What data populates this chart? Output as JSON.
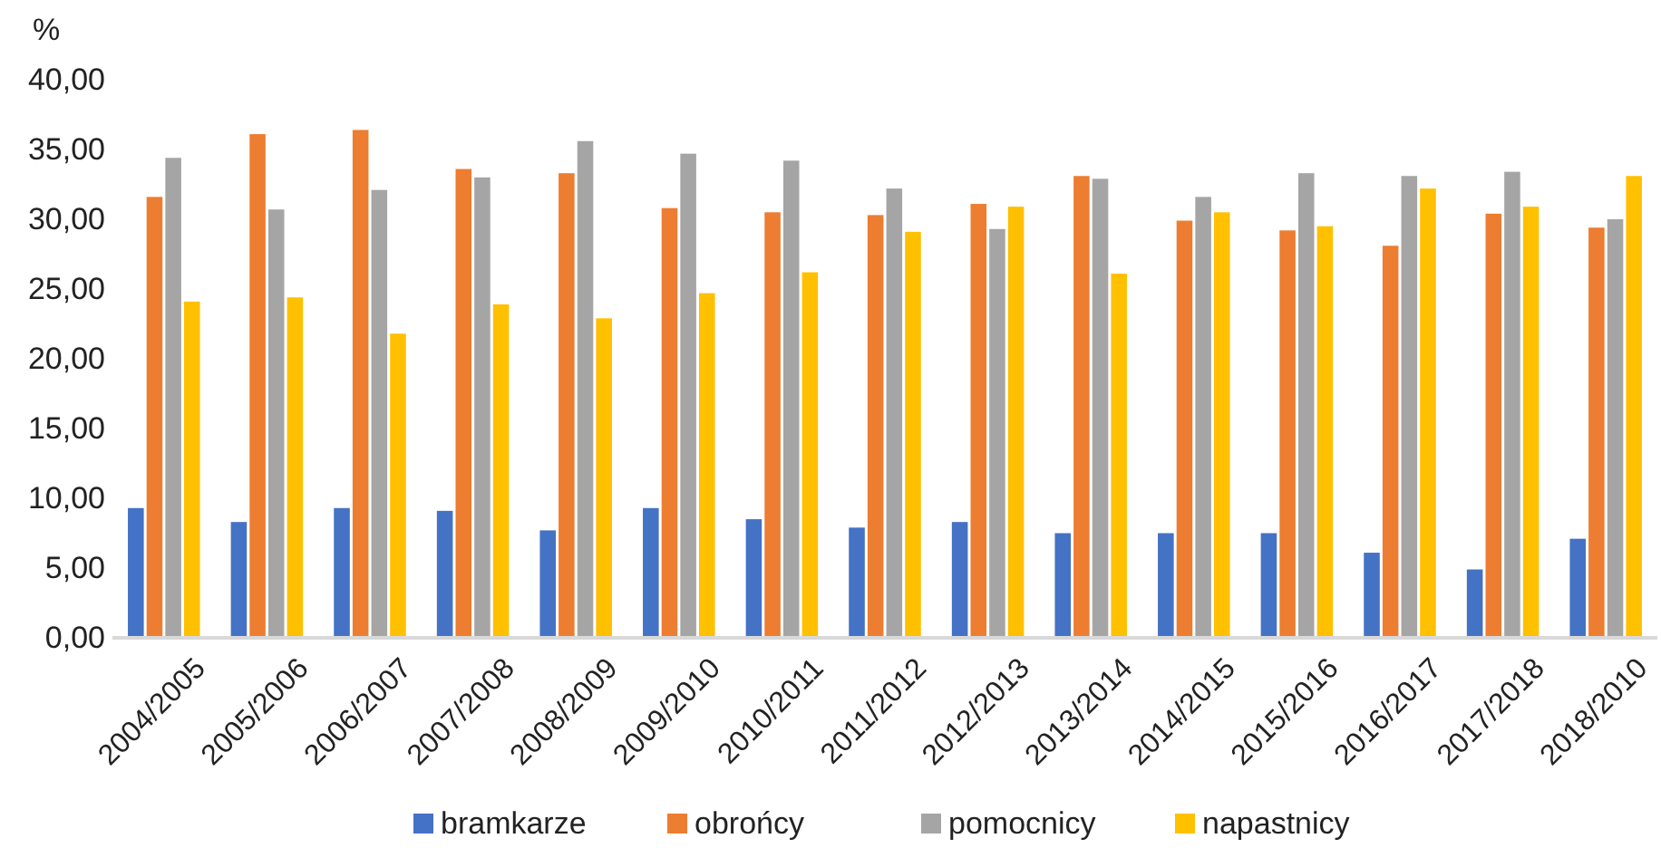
{
  "chart_data": {
    "type": "bar",
    "ylabel": "%",
    "categories": [
      "2004/2005",
      "2005/2006",
      "2006/2007",
      "2007/2008",
      "2008/2009",
      "2009/2010",
      "2010/2011",
      "2011/2012",
      "2012/2013",
      "2013/2014",
      "2014/2015",
      "2015/2016",
      "2016/2017",
      "2017/2018",
      "2018/2010"
    ],
    "series": [
      {
        "name": "bramkarze",
        "color": "#4472c4",
        "values": [
          9.3,
          8.3,
          9.3,
          9.1,
          7.7,
          9.3,
          8.5,
          7.9,
          8.3,
          7.5,
          7.5,
          7.5,
          6.1,
          4.9,
          7.1
        ]
      },
      {
        "name": "obrońcy",
        "color": "#ed7d31",
        "values": [
          31.6,
          36.1,
          36.4,
          33.6,
          33.3,
          30.8,
          30.5,
          30.3,
          31.1,
          33.1,
          29.9,
          29.2,
          28.1,
          30.4,
          29.4
        ]
      },
      {
        "name": "pomocnicy",
        "color": "#a5a5a5",
        "values": [
          34.4,
          30.7,
          32.1,
          33.0,
          35.6,
          34.7,
          34.2,
          32.2,
          29.3,
          32.9,
          31.6,
          33.3,
          33.1,
          33.4,
          30.0
        ]
      },
      {
        "name": "napastnicy",
        "color": "#ffc000",
        "values": [
          24.1,
          24.4,
          21.8,
          23.9,
          22.9,
          24.7,
          26.2,
          29.1,
          30.9,
          26.1,
          30.5,
          29.5,
          32.2,
          30.9,
          33.1
        ]
      }
    ],
    "ylim": [
      0,
      40
    ],
    "yticks": [
      {
        "value": 0,
        "label": "0,00"
      },
      {
        "value": 5,
        "label": "5,00"
      },
      {
        "value": 10,
        "label": "10,00"
      },
      {
        "value": 15,
        "label": "15,00"
      },
      {
        "value": 20,
        "label": "20,00"
      },
      {
        "value": 25,
        "label": "25,00"
      },
      {
        "value": 30,
        "label": "30,00"
      },
      {
        "value": 35,
        "label": "35,00"
      },
      {
        "value": 40,
        "label": "40,00"
      }
    ],
    "grid": false,
    "legend": "bottom"
  }
}
